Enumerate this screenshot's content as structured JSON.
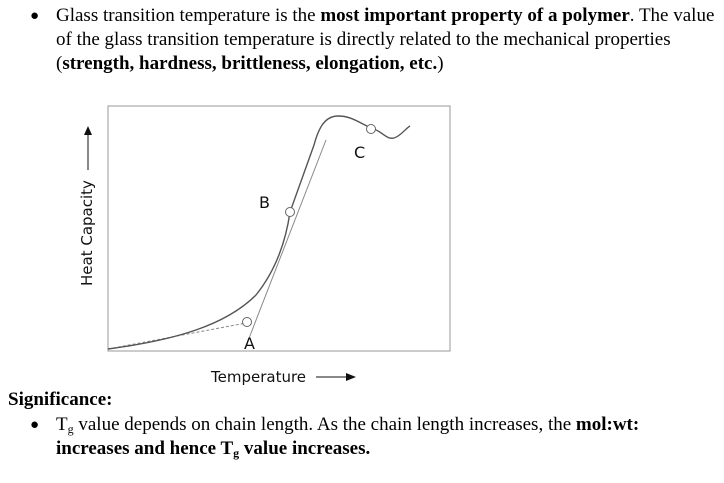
{
  "bullet1": {
    "t1": "Glass transition temperature is the ",
    "b1": "most important  property  of a polymer",
    "t2": ". The value of the glass transition temperature is directly related to the mechanical properties (",
    "b2": "strength,  hardness,  brittleness,  elongation,  etc.",
    "t3": ")"
  },
  "figure": {
    "ylabel": "Heat Capacity",
    "xlabel": "Temperature",
    "point_labels": [
      "A",
      "B",
      "C"
    ]
  },
  "significance": {
    "heading": "Significance:",
    "t_prefix": "T",
    "t_sub": "g",
    "t1": " value depends on chain length. As the chain length increases, the ",
    "b1": "mol:wt:",
    "b2": "increases and hence T",
    "b2_sub": "g",
    "b3": " value increases."
  }
}
